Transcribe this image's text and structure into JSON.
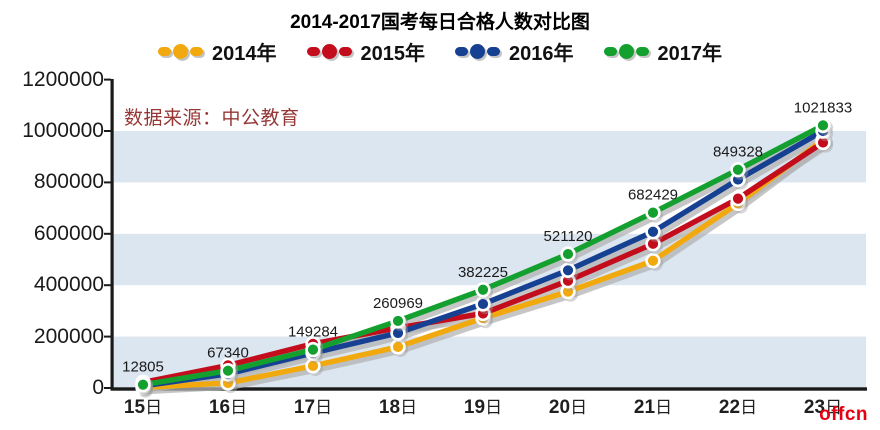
{
  "title": "2014-2017国考每日合格人数对比图",
  "source_note": "数据来源：中公教育",
  "watermark": "offcn",
  "colors": {
    "band": "#dce6f1",
    "axis": "#1a1a1a",
    "line_shadow": "#b3b3b3",
    "dot_ring": "#ffffff",
    "data_label_text": "#1a1a1a",
    "source_text": "#953735",
    "watermark_red": "#e60012"
  },
  "chart_data": {
    "type": "line",
    "title": "2014-2017国考每日合格人数对比图",
    "xlabel": "",
    "ylabel": "",
    "categories": [
      "15日",
      "16日",
      "17日",
      "18日",
      "19日",
      "20日",
      "21日",
      "22日",
      "23日"
    ],
    "series": [
      {
        "name": "2014年",
        "color": "#f2a90e",
        "values": [
          2000,
          19500,
          86000,
          160000,
          272000,
          375000,
          495000,
          718000,
          965000
        ]
      },
      {
        "name": "2015年",
        "color": "#c30d1c",
        "values": [
          22000,
          88000,
          172000,
          234000,
          290000,
          417000,
          561000,
          737000,
          955000
        ]
      },
      {
        "name": "2016年",
        "color": "#164193",
        "values": [
          8000,
          55000,
          136000,
          214000,
          327000,
          458000,
          608000,
          811000,
          1000000
        ]
      },
      {
        "name": "2017年",
        "color": "#14a02f",
        "values": [
          12805,
          67340,
          149284,
          260969,
          382225,
          521120,
          682429,
          849328,
          1021833
        ]
      }
    ],
    "labeled_series": "2017年",
    "data_labels": [
      "12805",
      "67340",
      "149284",
      "260969",
      "382225",
      "521120",
      "682429",
      "849328",
      "1021833"
    ],
    "yaxis": {
      "min": 0,
      "max": 1200000,
      "step": 200000,
      "tick_labels": [
        "0",
        "200000",
        "400000",
        "600000",
        "800000",
        "1000000",
        "1200000"
      ]
    },
    "legend_position": "top",
    "grid": "alternating horizontal bands (light blue / white) every 200000"
  }
}
